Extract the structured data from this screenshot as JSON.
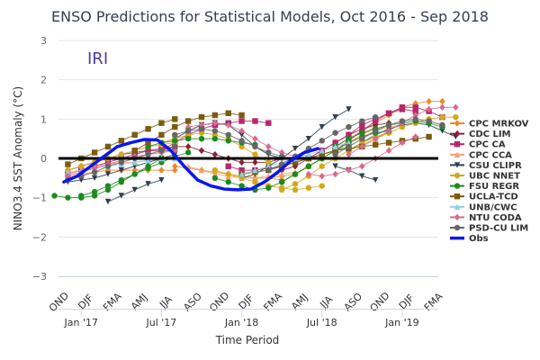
{
  "chart_data": {
    "type": "line",
    "title": "ENSO Predictions for Statistical Models, Oct 2016 - Sep 2018",
    "watermark": "IRI",
    "xlabel": "Time Period",
    "ylabel": "NINO3.4 SST Anomaly (°C)",
    "ylim": [
      -3,
      3
    ],
    "yticks": [
      3,
      2,
      1,
      0,
      -1,
      -2,
      -3
    ],
    "x_unit": "months since Jan 2017",
    "xlim": [
      -1.7,
      26.7
    ],
    "season_labels": [
      {
        "label": "OND",
        "month": -1.5
      },
      {
        "label": "DJF",
        "month": 0.5
      },
      {
        "label": "FMA",
        "month": 2.5
      },
      {
        "label": "AMJ",
        "month": 4.5
      },
      {
        "label": "JJA",
        "month": 6.5
      },
      {
        "label": "ASO",
        "month": 8.5
      },
      {
        "label": "OND",
        "month": 10.5
      },
      {
        "label": "DJF",
        "month": 12.5
      },
      {
        "label": "FMA",
        "month": 14.5
      },
      {
        "label": "AMJ",
        "month": 16.5
      },
      {
        "label": "JJA",
        "month": 18.5
      },
      {
        "label": "ASO",
        "month": 20.5
      },
      {
        "label": "OND",
        "month": 22.5
      },
      {
        "label": "DJF",
        "month": 24.5
      },
      {
        "label": "FMA",
        "month": 26.5
      }
    ],
    "date_ticks": [
      {
        "label": "Jan '17",
        "month": 0
      },
      {
        "label": "Jul '17",
        "month": 6
      },
      {
        "label": "Jan '18",
        "month": 12
      },
      {
        "label": "Jul '18",
        "month": 18
      },
      {
        "label": "Jan '19",
        "month": 24
      }
    ],
    "zero_line": 0,
    "legend_position": "right",
    "series": [
      {
        "name": "CPC MRKOV",
        "color": "#e8892e",
        "marker": "diamond",
        "runs": [
          {
            "start": -1,
            "values": [
              -0.5,
              -0.4,
              -0.35,
              -0.3,
              -0.3,
              -0.3,
              -0.3,
              -0.3,
              -0.3
            ]
          },
          {
            "start": 7,
            "values": [
              -0.2,
              -0.25,
              -0.3,
              -0.35,
              -0.4,
              -0.45,
              -0.5,
              -0.5,
              -0.55
            ]
          },
          {
            "start": 14,
            "values": [
              -0.5,
              -0.45,
              -0.4,
              -0.2,
              0.0,
              0.2,
              0.4,
              0.6,
              0.8
            ]
          },
          {
            "start": 19,
            "values": [
              0.3,
              0.5,
              0.7,
              0.9,
              1.1,
              1.3,
              1.4,
              1.45,
              1.45
            ]
          }
        ]
      },
      {
        "name": "CDC LIM",
        "color": "#8b2335",
        "marker": "diamond",
        "runs": [
          {
            "start": -1,
            "values": [
              -0.3,
              -0.2,
              -0.1,
              0.0,
              0.1,
              0.15,
              0.2,
              0.2,
              0.2
            ]
          },
          {
            "start": 7,
            "values": [
              0.3,
              0.3,
              0.2,
              0.1,
              0.0,
              -0.1,
              -0.1,
              -0.1,
              0.0
            ]
          },
          {
            "start": 15,
            "values": [
              -0.3,
              -0.2,
              0.0,
              0.2,
              0.4,
              0.6,
              0.75,
              0.85,
              0.9
            ]
          }
        ]
      },
      {
        "name": "CPC CA",
        "color": "#b8266d",
        "marker": "square",
        "runs": [
          {
            "start": -1,
            "values": [
              -0.4,
              -0.3,
              -0.2,
              -0.1,
              0.0,
              0.1,
              0.2,
              0.25,
              0.3
            ]
          },
          {
            "start": 6,
            "values": [
              0.2,
              0.4,
              0.6,
              0.75,
              0.85,
              0.9,
              0.95,
              0.95,
              0.9
            ]
          },
          {
            "start": 11,
            "values": [
              -0.2,
              -0.3,
              -0.3,
              -0.25,
              -0.2,
              -0.1,
              0.0,
              0.1,
              0.2
            ]
          },
          {
            "start": 17,
            "values": [
              0.0,
              0.2,
              0.4,
              0.6,
              0.85,
              1.0,
              1.15,
              1.25,
              1.2
            ]
          },
          {
            "start": 19,
            "values": [
              0.2,
              0.45,
              0.7,
              0.95,
              1.15,
              1.3,
              1.3,
              1.2,
              1.05
            ]
          }
        ]
      },
      {
        "name": "CPC CCA",
        "color": "#f5a071",
        "marker": "triangle",
        "runs": [
          {
            "start": -1,
            "values": [
              -0.4,
              -0.3,
              -0.2,
              -0.15,
              -0.1,
              -0.1,
              -0.05,
              0.0,
              0.0
            ]
          },
          {
            "start": 8,
            "values": [
              -0.2,
              -0.3,
              -0.4,
              -0.45,
              -0.5,
              -0.5,
              -0.45,
              -0.4,
              -0.35
            ]
          },
          {
            "start": 16,
            "values": [
              -0.4,
              -0.2,
              0.0,
              0.2,
              0.4,
              0.55,
              0.7,
              0.8,
              0.85
            ]
          }
        ]
      },
      {
        "name": "CSU CLIPR",
        "color": "#2f4050",
        "marker": "triangle-down",
        "runs": [
          {
            "start": -1,
            "values": [
              -0.6,
              -0.55,
              -0.5,
              -0.4,
              -0.3,
              -0.2,
              -0.1,
              0.0,
              0.1
            ]
          },
          {
            "start": 2,
            "values": [
              -1.1,
              -0.95,
              -0.8,
              -0.65,
              -0.55
            ]
          },
          {
            "start": 7,
            "values": [
              0.5,
              0.7,
              0.85,
              0.9,
              0.85,
              0.6,
              0.3,
              0.1,
              0.0
            ]
          },
          {
            "start": 12,
            "values": [
              -0.5,
              -0.4,
              -0.2,
              0.0,
              0.25,
              0.5,
              0.8,
              1.05,
              1.25
            ]
          },
          {
            "start": 19,
            "values": [
              -0.2,
              -0.3,
              -0.45,
              -0.55
            ]
          },
          {
            "start": 20,
            "values": [
              0.2,
              0.4,
              0.6,
              0.75,
              0.85,
              0.9,
              0.85,
              0.7,
              0.55
            ]
          }
        ]
      },
      {
        "name": "UBC NNET",
        "color": "#d4a81c",
        "marker": "circle",
        "runs": [
          {
            "start": -1,
            "values": [
              -0.3,
              -0.2,
              -0.1,
              0.0,
              0.1,
              0.2,
              0.3,
              0.35,
              0.4
            ]
          },
          {
            "start": 6,
            "values": [
              0.4,
              0.5,
              0.6,
              0.65,
              0.6,
              0.5,
              0.3,
              0.1,
              -0.1
            ]
          },
          {
            "start": 10,
            "values": [
              -0.3,
              -0.4,
              -0.5,
              -0.6,
              -0.7,
              -0.75,
              -0.8,
              -0.75,
              -0.7
            ]
          },
          {
            "start": 15,
            "values": [
              -0.8,
              -0.65,
              -0.45,
              -0.2,
              0.0,
              0.2,
              0.4,
              0.55,
              0.65
            ]
          },
          {
            "start": 20,
            "values": [
              0.2,
              0.35,
              0.5,
              0.65,
              0.8,
              0.9,
              1.0,
              1.05,
              1.05
            ]
          }
        ]
      },
      {
        "name": "FSU REGR",
        "color": "#1d8a1d",
        "marker": "circle",
        "runs": [
          {
            "start": -2,
            "values": [
              -0.95,
              -1.0,
              -1.0,
              -0.95,
              -0.8,
              -0.6,
              -0.4,
              -0.2,
              0.0
            ]
          },
          {
            "start": 0,
            "values": [
              -0.95,
              -0.85,
              -0.7,
              -0.55,
              -0.4,
              -0.25,
              -0.1,
              0.05,
              0.15
            ]
          },
          {
            "start": 5,
            "values": [
              0.3,
              0.4,
              0.45,
              0.5,
              0.5,
              0.5,
              0.45,
              0.4,
              0.35
            ]
          },
          {
            "start": 10,
            "values": [
              -0.5,
              -0.6,
              -0.7,
              -0.8,
              -0.75,
              -0.6,
              -0.4,
              -0.2,
              0.0
            ]
          },
          {
            "start": 15,
            "values": [
              -0.6,
              -0.4,
              -0.2,
              0.0,
              0.2,
              0.4,
              0.55,
              0.65,
              0.7
            ]
          },
          {
            "start": 19,
            "values": [
              0.3,
              0.5,
              0.65,
              0.75,
              0.85,
              0.9,
              0.95,
              0.9,
              0.8
            ]
          }
        ]
      },
      {
        "name": "UCLA-TCD",
        "color": "#7a5c0e",
        "marker": "square",
        "runs": [
          {
            "start": -1,
            "values": [
              -0.15,
              0.0,
              0.15,
              0.3,
              0.45,
              0.6,
              0.75,
              0.9,
              1.0
            ]
          },
          {
            "start": 4,
            "values": [
              0.2,
              0.4,
              0.6,
              0.8,
              0.95,
              1.05,
              1.1,
              1.15,
              1.1
            ]
          },
          {
            "start": 12,
            "values": [
              -0.4,
              -0.35,
              -0.3,
              -0.2,
              -0.1,
              0.0,
              0.1,
              0.2,
              0.3
            ]
          },
          {
            "start": 18,
            "values": [
              0.1,
              0.2,
              0.25,
              0.3,
              0.35,
              0.4,
              0.45,
              0.5,
              0.55
            ]
          }
        ]
      },
      {
        "name": "UNB/CWC",
        "color": "#8fcfe8",
        "marker": "triangle",
        "runs": [
          {
            "start": -1,
            "values": [
              -0.35,
              -0.3,
              -0.25,
              -0.2,
              -0.15,
              -0.1,
              -0.05,
              0.0,
              0.0
            ]
          },
          {
            "start": 12,
            "values": [
              -0.4,
              -0.3,
              -0.2,
              -0.1,
              0.0,
              0.1,
              0.2,
              0.3,
              0.4
            ]
          }
        ]
      },
      {
        "name": "NTU CODA",
        "color": "#d9698f",
        "marker": "diamond",
        "runs": [
          {
            "start": -1,
            "values": [
              -0.45,
              -0.35,
              -0.25,
              -0.15,
              -0.05,
              0.05,
              0.1,
              0.15,
              0.2
            ]
          },
          {
            "start": 8,
            "values": [
              0.8,
              0.85,
              0.9,
              0.85,
              0.7,
              0.5,
              0.3,
              0.15,
              0.05
            ]
          },
          {
            "start": 17,
            "values": [
              -0.4,
              -0.45,
              -0.4,
              -0.3,
              -0.2,
              0.0,
              0.2,
              0.4,
              0.55
            ]
          },
          {
            "start": 20,
            "values": [
              0.1,
              0.3,
              0.5,
              0.7,
              0.9,
              1.1,
              1.25,
              1.3,
              1.3
            ]
          }
        ]
      },
      {
        "name": "PSD-CU LIM",
        "color": "#666666",
        "marker": "circle",
        "runs": [
          {
            "start": -1,
            "values": [
              -0.55,
              -0.45,
              -0.35,
              -0.2,
              -0.1,
              0.0,
              0.1,
              0.2,
              0.3
            ]
          },
          {
            "start": 7,
            "values": [
              0.6,
              0.7,
              0.75,
              0.7,
              0.6,
              0.45,
              0.3,
              0.15,
              0.05
            ]
          },
          {
            "start": 14,
            "values": [
              -0.3,
              -0.15,
              0.05,
              0.25,
              0.45,
              0.65,
              0.8,
              0.95,
              1.05
            ]
          },
          {
            "start": 19,
            "values": [
              0.1,
              0.3,
              0.5,
              0.7,
              0.85,
              0.95,
              1.0,
              0.95,
              0.85
            ]
          }
        ]
      },
      {
        "name": "Obs",
        "color": "#0a16f0",
        "marker": "none",
        "observed": true,
        "runs": [
          {
            "start": -1.3,
            "values": [
              -0.6,
              -0.45,
              -0.2,
              0.05,
              0.3,
              0.4,
              0.48,
              0.47,
              0.2,
              -0.2,
              -0.55,
              -0.7,
              -0.78,
              -0.8,
              -0.78,
              -0.6,
              -0.35,
              -0.05,
              0.15,
              0.25
            ]
          }
        ]
      }
    ]
  }
}
